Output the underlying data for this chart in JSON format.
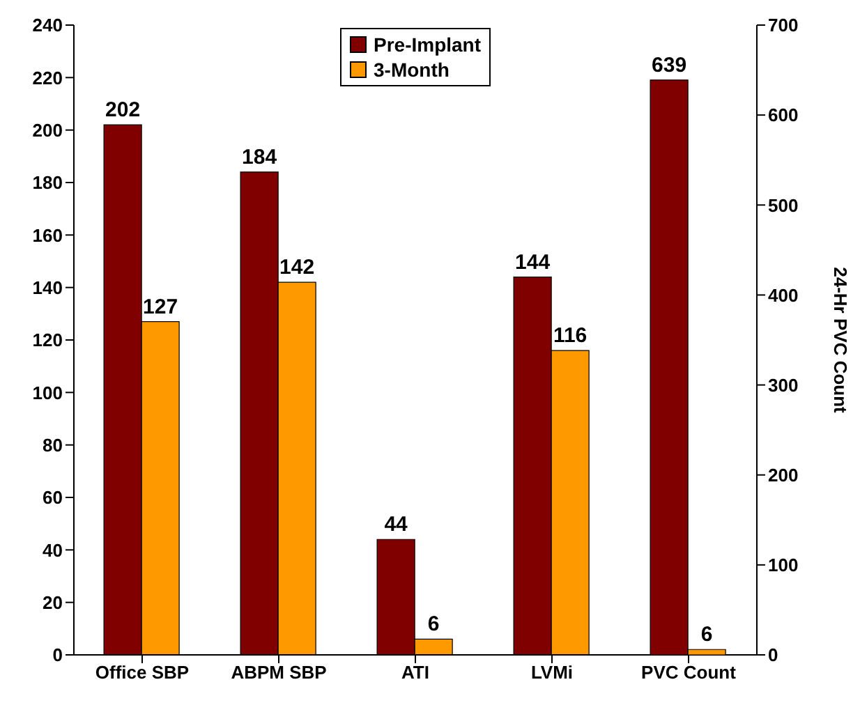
{
  "chart_data": {
    "type": "bar",
    "categories": [
      "Office SBP",
      "ABPM SBP",
      "ATI",
      "LVMi",
      "PVC Count"
    ],
    "series": [
      {
        "name": "Pre-Implant",
        "color": "#800000",
        "values": [
          202,
          184,
          44,
          144,
          null
        ]
      },
      {
        "name": "3-Month",
        "color": "#ff9900",
        "values": [
          127,
          142,
          6,
          116,
          null
        ]
      },
      {
        "color": "#800000",
        "axis": "y2",
        "values": [
          null,
          null,
          null,
          null,
          639
        ]
      },
      {
        "color": "#ff9900",
        "axis": "y2",
        "values": [
          null,
          null,
          null,
          null,
          6
        ]
      }
    ],
    "ylim": [
      0,
      240
    ],
    "yticks": [
      0,
      20,
      40,
      60,
      80,
      100,
      120,
      140,
      160,
      180,
      200,
      220,
      240
    ],
    "y2lim": [
      0,
      700
    ],
    "y2ticks": [
      0,
      100,
      200,
      300,
      400,
      500,
      600,
      700
    ],
    "y2label": "24-Hr PVC Count",
    "data_labels": true,
    "legend": "top",
    "grid": false
  }
}
